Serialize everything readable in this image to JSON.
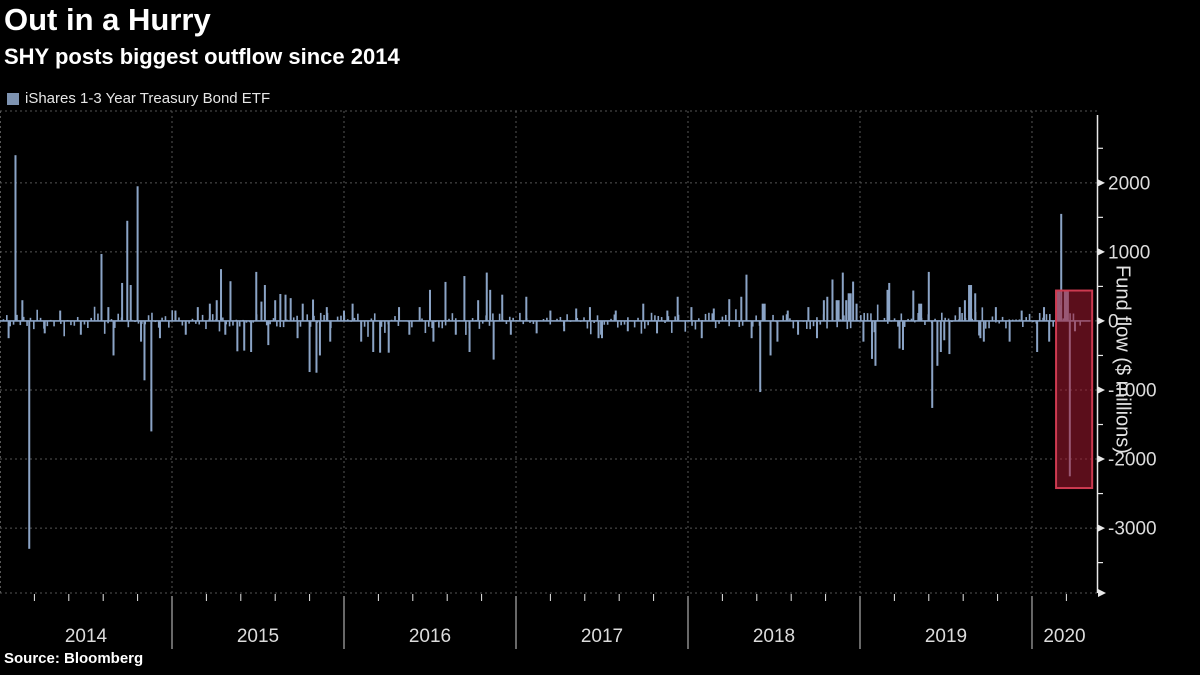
{
  "header": {
    "title": "Out in a Hurry",
    "subtitle": "SHY posts biggest outflow since 2014"
  },
  "legend": {
    "label": "iShares 1-3 Year Treasury Bond ETF",
    "swatch_color": "#7e93b1"
  },
  "source": {
    "label": "Source: Bloomberg"
  },
  "colors": {
    "background": "#000000",
    "bar": "#8ba4c6",
    "grid": "#555555",
    "axis": "#e8e8e8",
    "tick_label": "#dcdcdc",
    "highlight_fill": "rgba(165,25,50,0.55)",
    "highlight_border": "#cd3a50"
  },
  "chart_data": {
    "type": "bar",
    "title": "Out in a Hurry",
    "subtitle": "SHY posts biggest outflow since 2014",
    "series_name": "iShares 1-3 Year Treasury Bond ETF",
    "xlabel": "",
    "ylabel": "Fund flow ($ millions)",
    "unit": "$ millions",
    "grid": "dashed",
    "legend_position": "top-left",
    "xlim": [
      2014.0,
      2020.378
    ],
    "ylim": [
      -3940,
      3040
    ],
    "x_ticks": [
      2014,
      2015,
      2016,
      2017,
      2018,
      2019,
      2020
    ],
    "x_tick_labels": [
      "2014",
      "2015",
      "2016",
      "2017",
      "2018",
      "2019",
      "2020"
    ],
    "y_ticks": [
      2000,
      1000,
      0,
      -1000,
      -2000,
      -3000
    ],
    "y_tick_labels": [
      "2000",
      "1000",
      "0",
      "-1000",
      "-2000",
      "-3000"
    ],
    "y_minor_step": 500,
    "x_minor_per_year": 5,
    "spikes": [
      [
        2014.05,
        -250
      ],
      [
        2014.09,
        2400
      ],
      [
        2014.13,
        300
      ],
      [
        2014.17,
        -3300
      ],
      [
        2014.26,
        -180
      ],
      [
        2014.35,
        150
      ],
      [
        2014.47,
        -200
      ],
      [
        2014.59,
        970
      ],
      [
        2014.63,
        200
      ],
      [
        2014.66,
        -500
      ],
      [
        2014.71,
        550
      ],
      [
        2014.74,
        1450
      ],
      [
        2014.76,
        520
      ],
      [
        2014.8,
        1950
      ],
      [
        2014.82,
        -300
      ],
      [
        2014.84,
        -860
      ],
      [
        2014.88,
        -1600
      ],
      [
        2014.93,
        -250
      ],
      [
        2015.02,
        150
      ],
      [
        2015.08,
        -200
      ],
      [
        2015.15,
        200
      ],
      [
        2015.22,
        250
      ],
      [
        2015.26,
        300
      ],
      [
        2015.285,
        750
      ],
      [
        2015.31,
        -200
      ],
      [
        2015.34,
        575
      ],
      [
        2015.38,
        -440
      ],
      [
        2015.42,
        -430
      ],
      [
        2015.46,
        -450
      ],
      [
        2015.49,
        710
      ],
      [
        2015.52,
        280
      ],
      [
        2015.54,
        520
      ],
      [
        2015.56,
        -350
      ],
      [
        2015.6,
        300
      ],
      [
        2015.63,
        390
      ],
      [
        2015.66,
        380
      ],
      [
        2015.69,
        330
      ],
      [
        2015.73,
        -250
      ],
      [
        2015.76,
        250
      ],
      [
        2015.8,
        -740
      ],
      [
        2015.82,
        310
      ],
      [
        2015.84,
        -750
      ],
      [
        2015.86,
        -500
      ],
      [
        2015.9,
        200
      ],
      [
        2015.92,
        -300
      ],
      [
        2016.0,
        150
      ],
      [
        2016.05,
        250
      ],
      [
        2016.1,
        -300
      ],
      [
        2016.17,
        -450
      ],
      [
        2016.21,
        -460
      ],
      [
        2016.26,
        -460
      ],
      [
        2016.32,
        200
      ],
      [
        2016.38,
        -200
      ],
      [
        2016.44,
        200
      ],
      [
        2016.5,
        450
      ],
      [
        2016.52,
        -300
      ],
      [
        2016.59,
        565
      ],
      [
        2016.65,
        -200
      ],
      [
        2016.7,
        650
      ],
      [
        2016.73,
        -450
      ],
      [
        2016.78,
        300
      ],
      [
        2016.83,
        700
      ],
      [
        2016.85,
        450
      ],
      [
        2016.87,
        -560
      ],
      [
        2016.92,
        380
      ],
      [
        2016.97,
        -200
      ],
      [
        2017.06,
        350
      ],
      [
        2017.12,
        -180
      ],
      [
        2017.2,
        150
      ],
      [
        2017.28,
        -150
      ],
      [
        2017.35,
        180
      ],
      [
        2017.43,
        200
      ],
      [
        2017.48,
        -250
      ],
      [
        2017.5,
        -250
      ],
      [
        2017.58,
        150
      ],
      [
        2017.65,
        -150
      ],
      [
        2017.74,
        250
      ],
      [
        2017.82,
        -180
      ],
      [
        2017.88,
        150
      ],
      [
        2017.94,
        350
      ],
      [
        2018.02,
        200
      ],
      [
        2018.08,
        -250
      ],
      [
        2018.15,
        180
      ],
      [
        2018.24,
        315
      ],
      [
        2018.31,
        350
      ],
      [
        2018.34,
        670
      ],
      [
        2018.37,
        -250
      ],
      [
        2018.42,
        -1030
      ],
      [
        2018.44,
        250,
        4
      ],
      [
        2018.48,
        -500
      ],
      [
        2018.52,
        -300
      ],
      [
        2018.58,
        150
      ],
      [
        2018.64,
        -200
      ],
      [
        2018.7,
        200
      ],
      [
        2018.75,
        -250
      ],
      [
        2018.79,
        300
      ],
      [
        2018.81,
        350
      ],
      [
        2018.84,
        600
      ],
      [
        2018.87,
        300,
        4
      ],
      [
        2018.9,
        700
      ],
      [
        2018.92,
        300
      ],
      [
        2018.94,
        400,
        4
      ],
      [
        2018.96,
        570
      ],
      [
        2018.98,
        250
      ],
      [
        2019.02,
        -300
      ],
      [
        2019.07,
        -550
      ],
      [
        2019.09,
        -650
      ],
      [
        2019.16,
        450
      ],
      [
        2019.17,
        550
      ],
      [
        2019.23,
        -400
      ],
      [
        2019.25,
        -420
      ],
      [
        2019.31,
        440
      ],
      [
        2019.35,
        250,
        4
      ],
      [
        2019.4,
        710
      ],
      [
        2019.42,
        -1260
      ],
      [
        2019.45,
        -650
      ],
      [
        2019.47,
        -450
      ],
      [
        2019.49,
        -280
      ],
      [
        2019.52,
        -480
      ],
      [
        2019.58,
        200
      ],
      [
        2019.61,
        300
      ],
      [
        2019.64,
        520,
        4
      ],
      [
        2019.67,
        400
      ],
      [
        2019.7,
        -250
      ],
      [
        2019.72,
        -300
      ],
      [
        2019.79,
        200
      ],
      [
        2019.87,
        -300
      ],
      [
        2019.94,
        150
      ],
      [
        2020.03,
        -450
      ],
      [
        2020.07,
        200
      ],
      [
        2020.1,
        -300
      ],
      [
        2020.15,
        450,
        5
      ],
      [
        2020.17,
        1550
      ],
      [
        2020.2,
        430,
        5
      ],
      [
        2020.22,
        -2250
      ],
      [
        2020.25,
        -150
      ]
    ],
    "noise": {
      "seed": 42,
      "count": 320,
      "amplitude": 120,
      "start": 2014.02,
      "end": 2020.3
    },
    "highlight_box": {
      "x0": 2020.14,
      "x1": 2020.35,
      "v_top": 440,
      "v_bottom": -2420
    }
  }
}
